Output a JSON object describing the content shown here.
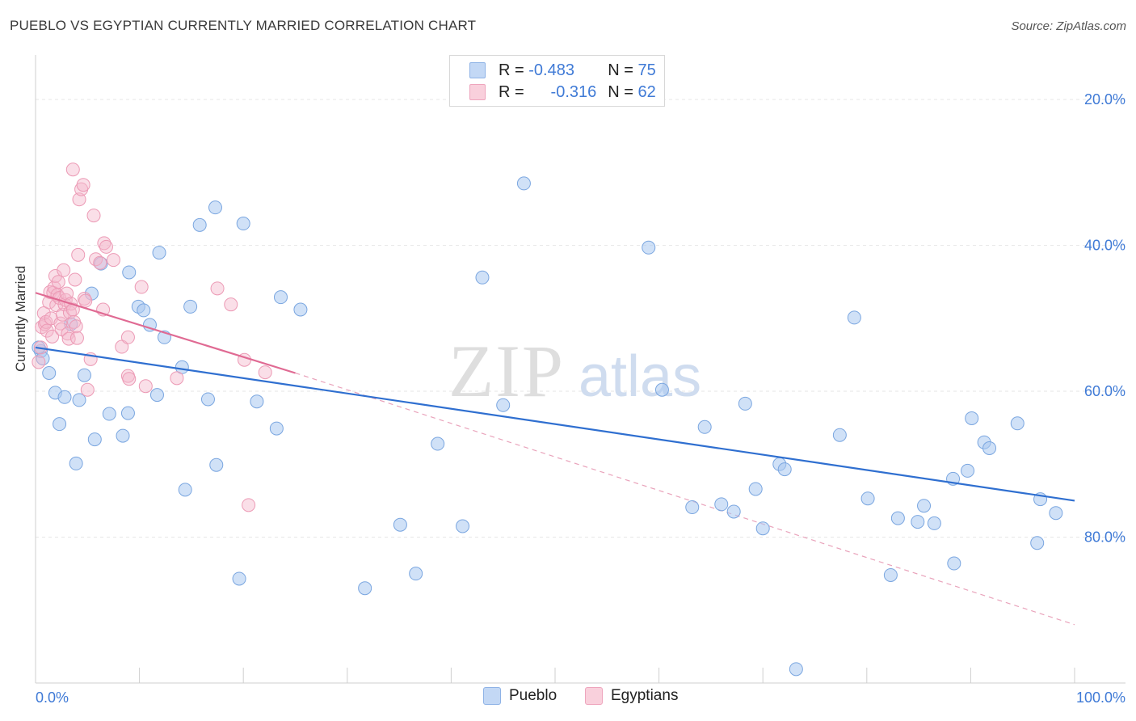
{
  "header": {
    "title": "PUEBLO VS EGYPTIAN CURRENTLY MARRIED CORRELATION CHART",
    "source": "Source: ZipAtlas.com"
  },
  "watermark": {
    "zip": "ZIP",
    "atlas": "atlas"
  },
  "legend": {
    "rows": [
      {
        "r_label": "R =",
        "r_value": "-0.483",
        "n_label": "N =",
        "n_value": "75",
        "color": "#a9c8f0"
      },
      {
        "r_label": "R =",
        "r_value": "-0.316",
        "n_label": "N =",
        "n_value": "62",
        "color": "#f5b8cb"
      }
    ]
  },
  "bottom_legend": {
    "pueblo": "Pueblo",
    "egyptians": "Egyptians"
  },
  "axis": {
    "ylabel": "Currently Married",
    "x_min_label": "0.0%",
    "x_max_label": "100.0%",
    "y_ticks": [
      "80.0%",
      "60.0%",
      "40.0%",
      "20.0%"
    ]
  },
  "chart_data": {
    "type": "scatter",
    "title": "PUEBLO VS EGYPTIAN CURRENTLY MARRIED CORRELATION CHART",
    "xlabel": "",
    "ylabel": "Currently Married",
    "xlim": [
      0,
      100
    ],
    "ylim": [
      0,
      85
    ],
    "y_tick_values": [
      20,
      40,
      60,
      80
    ],
    "grid": true,
    "colors": {
      "pueblo": "#a9c8f0",
      "pueblo_line": "#2f6fd0",
      "egyptians": "#f5b8cb",
      "egyptians_line": "#e06a93"
    },
    "series": [
      {
        "name": "Pueblo",
        "trend": {
          "x0": 0,
          "y0": 46.0,
          "x1": 100,
          "y1": 25.0,
          "style": "solid"
        },
        "points": [
          [
            0.5,
            45.5
          ],
          [
            0.7,
            44.5
          ],
          [
            1.3,
            42.5
          ],
          [
            1.9,
            39.8
          ],
          [
            2.3,
            35.5
          ],
          [
            2.8,
            39.2
          ],
          [
            3.4,
            49.2
          ],
          [
            3.9,
            30.1
          ],
          [
            4.2,
            38.8
          ],
          [
            4.7,
            42.2
          ],
          [
            5.4,
            53.4
          ],
          [
            5.7,
            33.4
          ],
          [
            6.3,
            57.5
          ],
          [
            7.1,
            36.9
          ],
          [
            8.4,
            33.9
          ],
          [
            8.9,
            37.0
          ],
          [
            9.0,
            56.3
          ],
          [
            9.9,
            51.6
          ],
          [
            10.4,
            51.1
          ],
          [
            11.0,
            49.1
          ],
          [
            11.7,
            39.5
          ],
          [
            11.9,
            59.0
          ],
          [
            12.4,
            47.4
          ],
          [
            14.1,
            43.3
          ],
          [
            14.4,
            26.5
          ],
          [
            14.9,
            51.6
          ],
          [
            15.8,
            62.8
          ],
          [
            16.6,
            38.9
          ],
          [
            17.3,
            65.2
          ],
          [
            17.4,
            29.9
          ],
          [
            19.6,
            14.3
          ],
          [
            20.0,
            63.0
          ],
          [
            21.3,
            38.6
          ],
          [
            23.2,
            34.9
          ],
          [
            23.6,
            52.9
          ],
          [
            25.5,
            51.2
          ],
          [
            31.7,
            13.0
          ],
          [
            35.1,
            21.7
          ],
          [
            36.6,
            15.0
          ],
          [
            38.7,
            32.8
          ],
          [
            41.1,
            21.5
          ],
          [
            43.0,
            55.6
          ],
          [
            45.0,
            38.1
          ],
          [
            47.0,
            68.5
          ],
          [
            59.0,
            59.7
          ],
          [
            60.3,
            40.2
          ],
          [
            63.2,
            24.1
          ],
          [
            64.4,
            35.1
          ],
          [
            66.0,
            24.5
          ],
          [
            67.2,
            23.5
          ],
          [
            68.3,
            38.3
          ],
          [
            69.3,
            26.6
          ],
          [
            70.0,
            21.2
          ],
          [
            71.6,
            30.0
          ],
          [
            72.1,
            29.3
          ],
          [
            73.2,
            1.9
          ],
          [
            77.4,
            34.0
          ],
          [
            78.8,
            50.1
          ],
          [
            80.1,
            25.3
          ],
          [
            82.3,
            14.8
          ],
          [
            83.0,
            22.6
          ],
          [
            84.9,
            22.1
          ],
          [
            85.5,
            24.3
          ],
          [
            86.5,
            21.9
          ],
          [
            88.4,
            16.4
          ],
          [
            88.3,
            28.0
          ],
          [
            89.7,
            29.1
          ],
          [
            90.1,
            36.3
          ],
          [
            91.3,
            33.0
          ],
          [
            91.8,
            32.2
          ],
          [
            94.5,
            35.6
          ],
          [
            96.4,
            19.2
          ],
          [
            96.7,
            25.2
          ],
          [
            98.2,
            23.3
          ],
          [
            0.3,
            46.0
          ]
        ]
      },
      {
        "name": "Egyptians",
        "trend": {
          "x0": 0,
          "y0": 53.5,
          "x1": 25,
          "y1": 42.5,
          "style": "solid",
          "extended_to": [
            100,
            8.0
          ],
          "extended_style": "dashed"
        },
        "points": [
          [
            0.3,
            44.0
          ],
          [
            0.5,
            46.0
          ],
          [
            0.6,
            48.8
          ],
          [
            0.8,
            50.7
          ],
          [
            0.9,
            49.2
          ],
          [
            1.0,
            49.5
          ],
          [
            1.1,
            48.3
          ],
          [
            1.3,
            52.2
          ],
          [
            1.4,
            53.6
          ],
          [
            1.5,
            50.0
          ],
          [
            1.6,
            47.5
          ],
          [
            1.7,
            53.5
          ],
          [
            1.8,
            54.2
          ],
          [
            1.9,
            55.8
          ],
          [
            2.0,
            51.8
          ],
          [
            2.1,
            53.2
          ],
          [
            2.2,
            55.0
          ],
          [
            2.3,
            52.8
          ],
          [
            2.4,
            49.3
          ],
          [
            2.5,
            48.5
          ],
          [
            2.6,
            50.5
          ],
          [
            2.7,
            56.6
          ],
          [
            2.8,
            51.9
          ],
          [
            2.9,
            52.5
          ],
          [
            3.0,
            53.4
          ],
          [
            3.1,
            47.9
          ],
          [
            3.2,
            47.2
          ],
          [
            3.3,
            50.8
          ],
          [
            3.4,
            52.0
          ],
          [
            3.6,
            51.2
          ],
          [
            3.7,
            49.5
          ],
          [
            3.8,
            55.3
          ],
          [
            3.9,
            48.9
          ],
          [
            4.0,
            47.3
          ],
          [
            4.1,
            58.7
          ],
          [
            4.2,
            66.3
          ],
          [
            4.4,
            67.7
          ],
          [
            4.6,
            68.3
          ],
          [
            4.7,
            52.7
          ],
          [
            4.8,
            52.4
          ],
          [
            5.0,
            40.2
          ],
          [
            5.3,
            44.4
          ],
          [
            5.6,
            64.1
          ],
          [
            5.8,
            58.1
          ],
          [
            6.2,
            57.6
          ],
          [
            6.5,
            51.2
          ],
          [
            6.6,
            60.3
          ],
          [
            6.8,
            59.8
          ],
          [
            7.5,
            58.0
          ],
          [
            8.3,
            46.1
          ],
          [
            8.9,
            47.4
          ],
          [
            8.9,
            42.1
          ],
          [
            9.0,
            41.7
          ],
          [
            10.2,
            54.3
          ],
          [
            10.6,
            40.7
          ],
          [
            13.6,
            41.8
          ],
          [
            17.5,
            54.1
          ],
          [
            18.8,
            51.9
          ],
          [
            20.1,
            44.3
          ],
          [
            20.5,
            24.4
          ],
          [
            22.1,
            42.6
          ],
          [
            3.6,
            70.4
          ]
        ]
      }
    ]
  }
}
